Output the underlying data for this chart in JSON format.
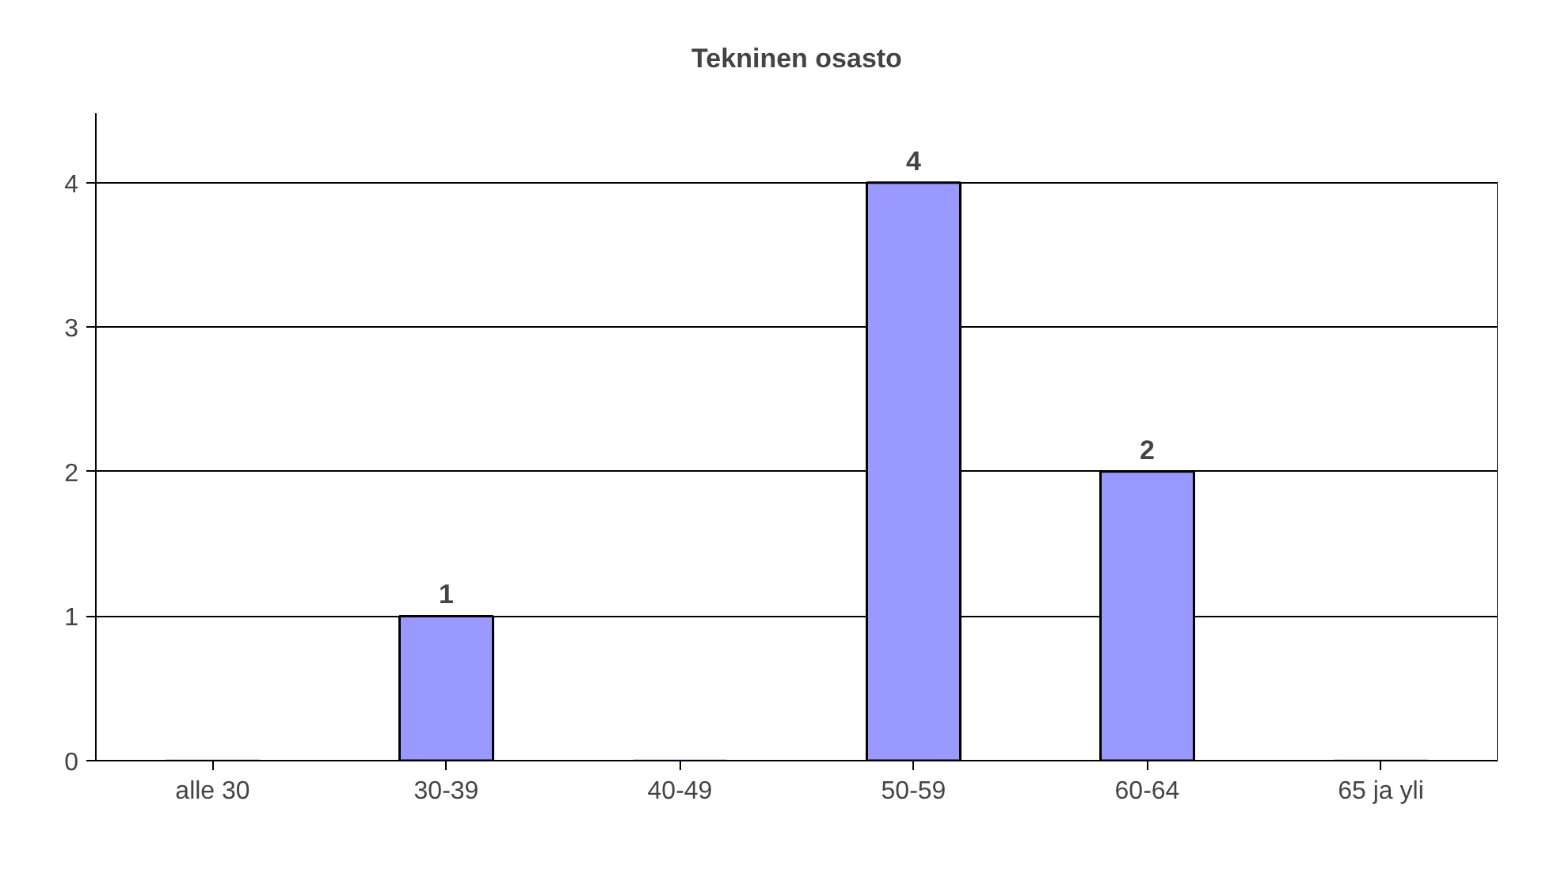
{
  "chart_data": {
    "type": "bar",
    "title": "Tekninen osasto",
    "categories": [
      "alle 30",
      "30-39",
      "40-49",
      "50-59",
      "60-64",
      "65 ja yli"
    ],
    "values": [
      0,
      1,
      0,
      4,
      2,
      0
    ],
    "value_labels": [
      null,
      "1",
      null,
      "4",
      "2",
      null
    ],
    "color": "#9999ff",
    "ylim": [
      0,
      4
    ],
    "yticks": [
      0,
      1,
      2,
      3,
      4
    ],
    "grid": "y"
  }
}
